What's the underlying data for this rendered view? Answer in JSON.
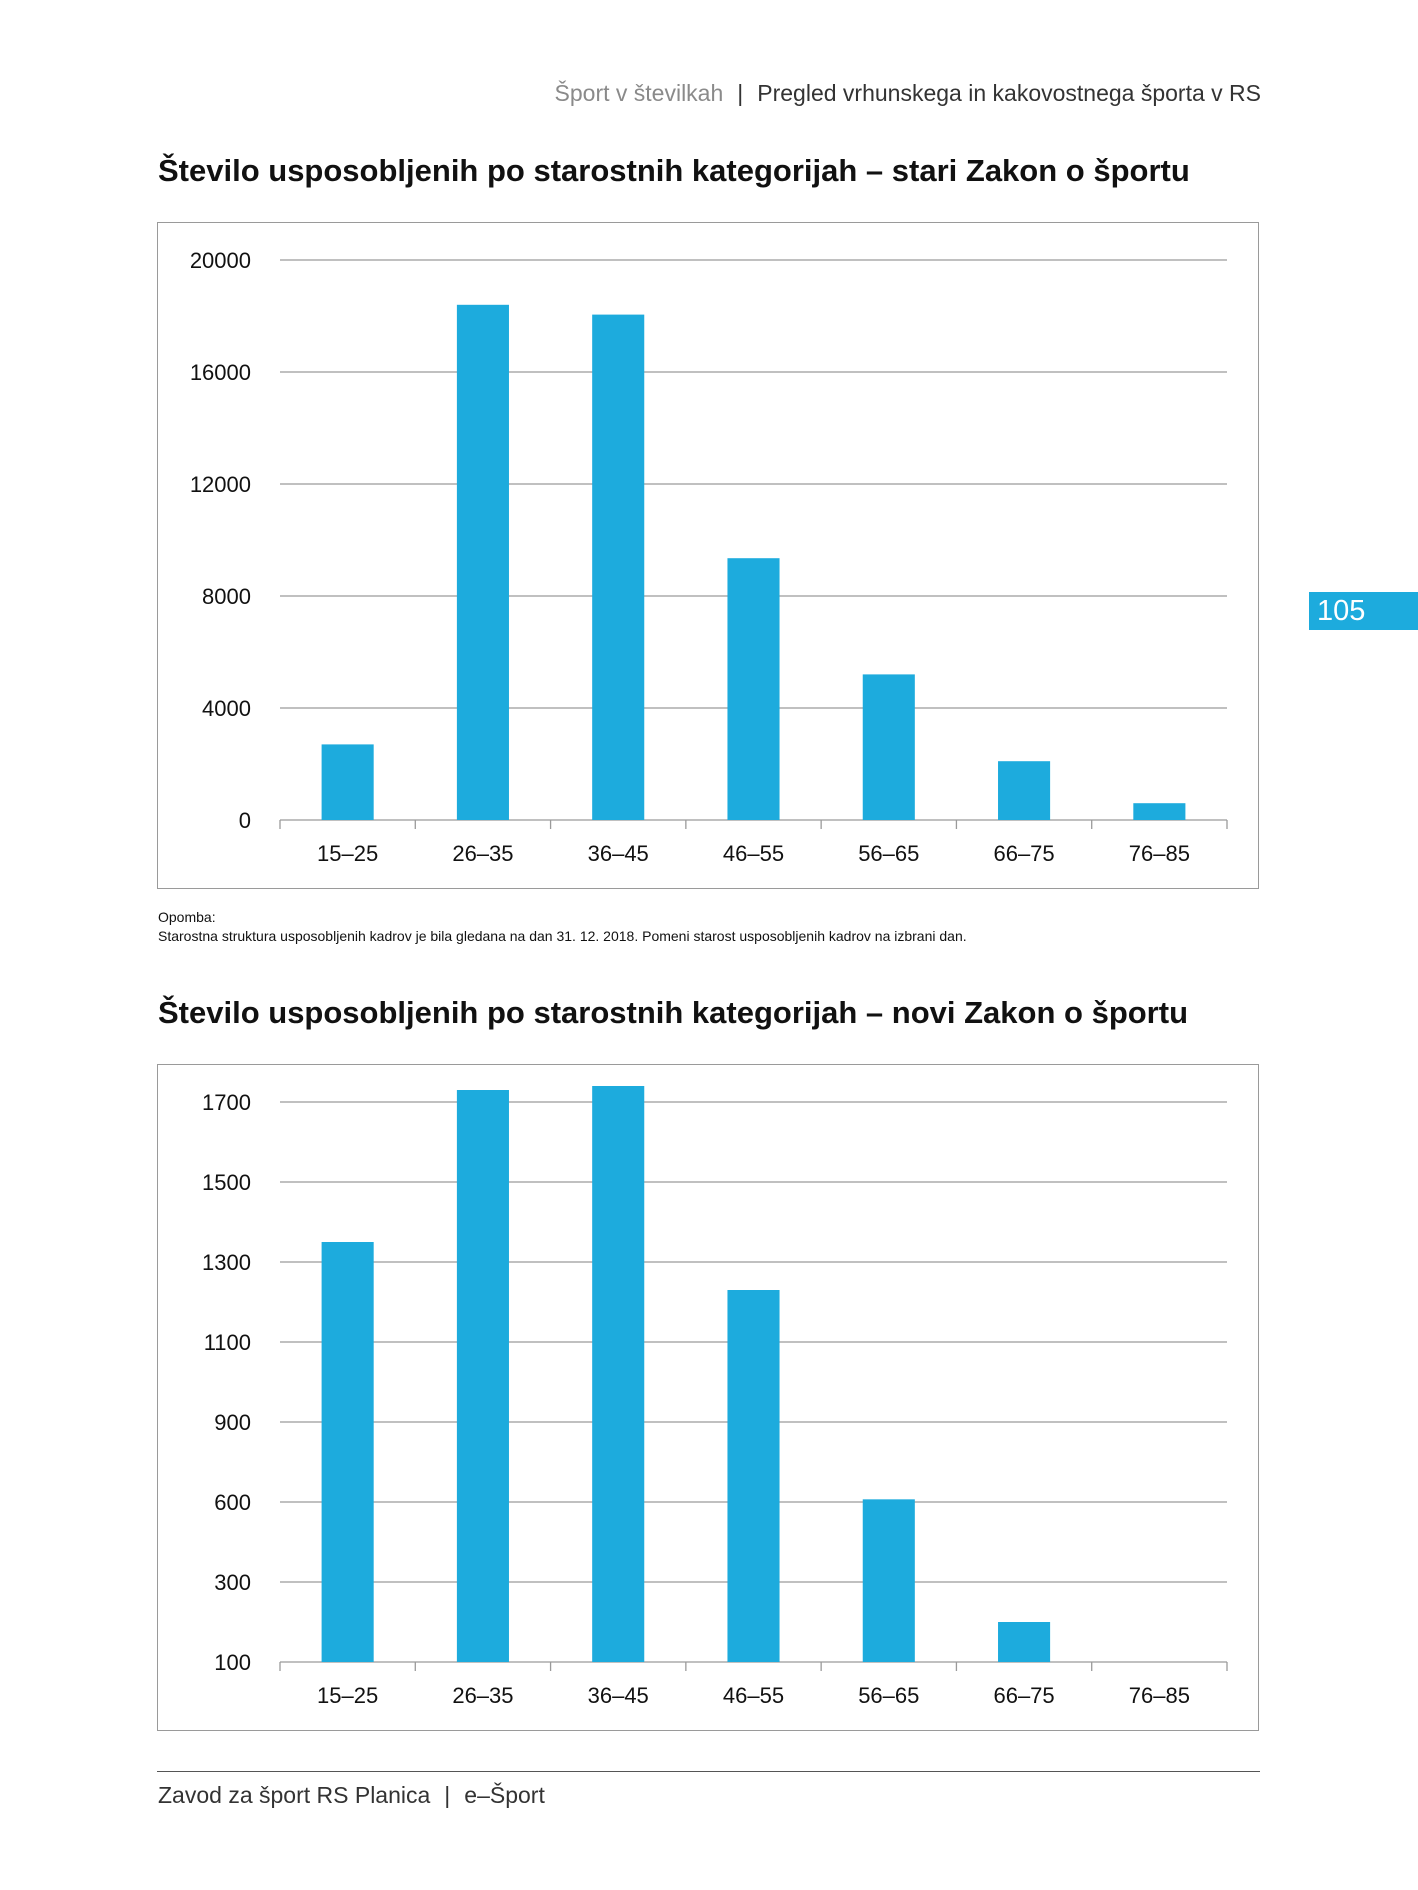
{
  "header": {
    "publication": "Šport v številkah",
    "separator": "|",
    "section": "Pregled vrhunskega in kakovostnega športa v RS"
  },
  "page_number": "105",
  "note": {
    "label": "Opomba:",
    "text": "Starostna struktura usposobljenih kadrov je bila gledana na dan 31. 12. 2018. Pomeni starost usposobljenih kadrov na izbrani dan."
  },
  "footer": {
    "org": "Zavod za šport RS Planica",
    "separator": "|",
    "product": "e–Šport"
  },
  "colors": {
    "bar": "#1dabdd",
    "grid": "#9a9a9a",
    "tab": "#1dabdd"
  },
  "chart_data": [
    {
      "type": "bar",
      "title": "Število usposobljenih po starostnih kategorijah – stari Zakon o športu",
      "xlabel": "",
      "ylabel": "",
      "categories": [
        "15–25",
        "26–35",
        "36–45",
        "46–55",
        "56–65",
        "66–75",
        "76–85"
      ],
      "values": [
        2700,
        18400,
        18050,
        9350,
        5200,
        2100,
        600
      ],
      "ylim": [
        0,
        20000
      ],
      "yticks": [
        0,
        4000,
        8000,
        12000,
        16000,
        20000
      ],
      "grid": true,
      "legend": "none"
    },
    {
      "type": "bar",
      "title": "Število usposobljenih po starostnih kategorijah – novi Zakon o športu",
      "xlabel": "",
      "ylabel": "",
      "categories": [
        "15–25",
        "26–35",
        "36–45",
        "46–55",
        "56–65",
        "66–75",
        "76–85"
      ],
      "values": [
        1350,
        1730,
        1740,
        1230,
        610,
        200,
        100
      ],
      "ylim": [
        100,
        1700
      ],
      "yticks": [
        100,
        300,
        600,
        900,
        1100,
        1300,
        1500,
        1700
      ],
      "ytick_scale": "categorical-equal-spacing",
      "grid": true,
      "legend": "none"
    }
  ]
}
